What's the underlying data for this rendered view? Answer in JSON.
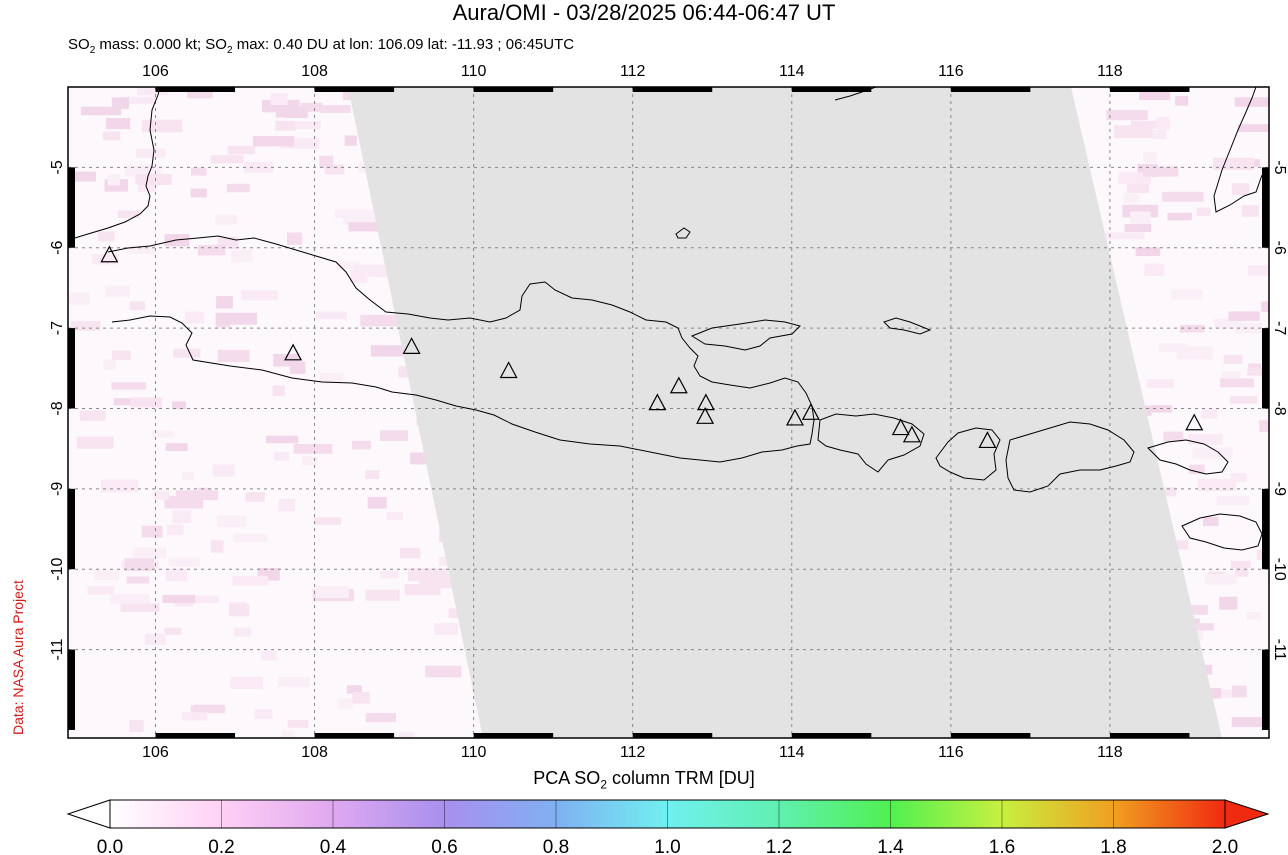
{
  "header": {
    "title": "Aura/OMI - 03/28/2025 06:44-06:47 UT",
    "subtitle_prefix": "SO",
    "subtitle_sub1": "2",
    "subtitle_mid": " mass: 0.000 kt; SO",
    "subtitle_sub2": "2",
    "subtitle_rest": " max: 0.40 DU at lon: 106.09 lat: -11.93 ; 06:45UTC"
  },
  "credit": "Data: NASA Aura Project",
  "map": {
    "lon_range": [
      104.9,
      120.0
    ],
    "lat_range": [
      -12.1,
      -4.0
    ],
    "lon_ticks": [
      "106",
      "108",
      "110",
      "112",
      "114",
      "116",
      "118"
    ],
    "lat_ticks": [
      "-5",
      "-6",
      "-7",
      "-8",
      "-9",
      "-10",
      "-11"
    ],
    "no_data_swath_color": "#e3e3e3",
    "grid": "dashed"
  },
  "volcanoes": [
    {
      "lon": 105.42,
      "lat": -6.1
    },
    {
      "lon": 107.73,
      "lat": -7.32
    },
    {
      "lon": 109.22,
      "lat": -7.24
    },
    {
      "lon": 110.44,
      "lat": -7.54
    },
    {
      "lon": 112.31,
      "lat": -7.94
    },
    {
      "lon": 112.58,
      "lat": -7.73
    },
    {
      "lon": 112.92,
      "lat": -7.94
    },
    {
      "lon": 112.91,
      "lat": -8.11
    },
    {
      "lon": 114.04,
      "lat": -8.13
    },
    {
      "lon": 114.24,
      "lat": -8.06
    },
    {
      "lon": 115.37,
      "lat": -8.25
    },
    {
      "lon": 115.51,
      "lat": -8.34
    },
    {
      "lon": 116.46,
      "lat": -8.41
    },
    {
      "lon": 119.06,
      "lat": -8.19
    }
  ],
  "colorbar": {
    "label_prefix": "PCA SO",
    "label_sub": "2",
    "label_rest": " column TRM [DU]",
    "ticks": [
      "0.0",
      "0.2",
      "0.4",
      "0.6",
      "0.8",
      "1.0",
      "1.2",
      "1.4",
      "1.6",
      "1.8",
      "2.0"
    ],
    "range": [
      0.0,
      2.0
    ],
    "colors": [
      "#ffffff",
      "#ffd0f5",
      "#e0a8f0",
      "#a890ee",
      "#80b0f2",
      "#70f0f0",
      "#60f0b0",
      "#50f050",
      "#c8f040",
      "#f0a020",
      "#f02a10"
    ]
  }
}
